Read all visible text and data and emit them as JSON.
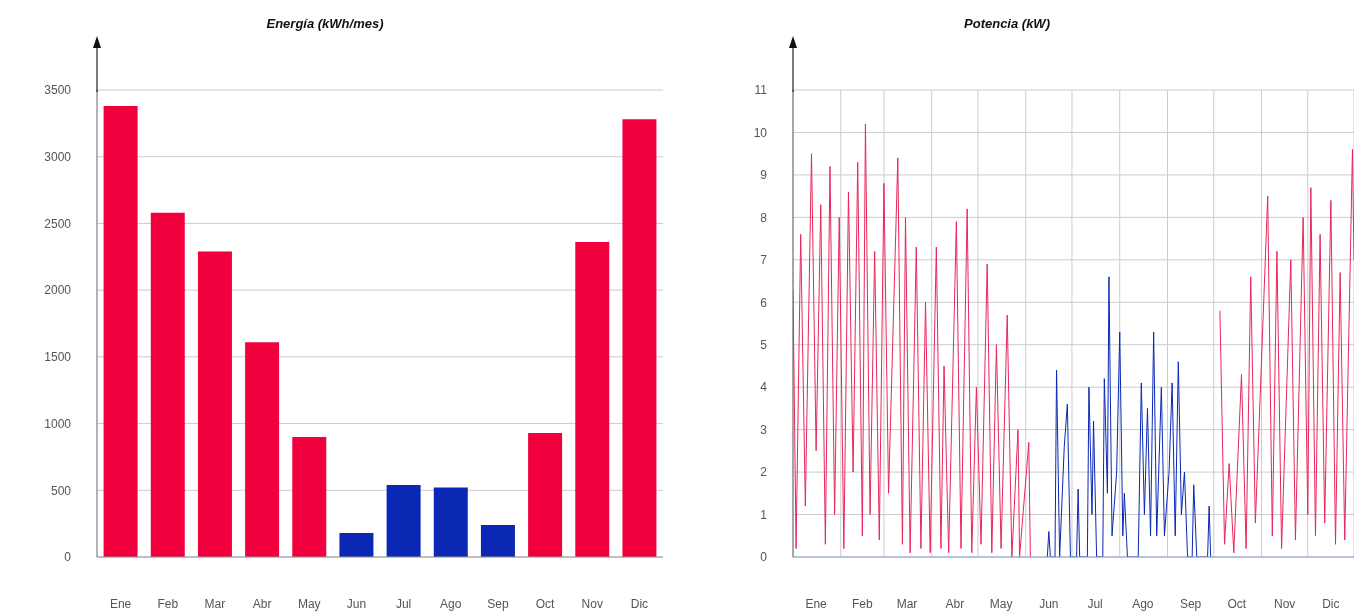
{
  "chart_data": [
    {
      "type": "bar",
      "title": "Energía (kWh/mes)",
      "categories": [
        "Ene",
        "Feb",
        "Mar",
        "Abr",
        "May",
        "Jun",
        "Jul",
        "Ago",
        "Sep",
        "Oct",
        "Nov",
        "Dic"
      ],
      "values": [
        3380,
        2580,
        2290,
        1610,
        900,
        180,
        540,
        520,
        240,
        930,
        2360,
        3280
      ],
      "colors": [
        "#f0003c",
        "#f0003c",
        "#f0003c",
        "#f0003c",
        "#f0003c",
        "#0a28b4",
        "#0a28b4",
        "#0a28b4",
        "#0a28b4",
        "#f0003c",
        "#f0003c",
        "#f0003c"
      ],
      "ylim": [
        0,
        3500
      ],
      "yticks": [
        0,
        500,
        1000,
        1500,
        2000,
        2500,
        3000,
        3500
      ],
      "grid": "y"
    },
    {
      "type": "line",
      "title": "Potencia (kW)",
      "xlim": [
        "--01-01",
        "--12-31"
      ],
      "xticks": [
        {
          "value": "--01-01",
          "label": null
        },
        {
          "value": "--01-16",
          "label": "Ene"
        },
        {
          "value": "--02-01",
          "label": null
        },
        {
          "value": "--02-15",
          "label": "Feb"
        },
        {
          "value": "--03-01",
          "label": null
        },
        {
          "value": "--03-16",
          "label": "Mar"
        },
        {
          "value": "--04-01",
          "label": null
        },
        {
          "value": "--04-16",
          "label": "Abr"
        },
        {
          "value": "--05-01",
          "label": null
        },
        {
          "value": "--05-16",
          "label": "May"
        },
        {
          "value": "--06-01",
          "label": null
        },
        {
          "value": "--06-16",
          "label": "Jun"
        },
        {
          "value": "--07-01",
          "label": null
        },
        {
          "value": "--07-16",
          "label": "Jul"
        },
        {
          "value": "--08-01",
          "label": null
        },
        {
          "value": "--08-16",
          "label": "Ago"
        },
        {
          "value": "--09-01",
          "label": null
        },
        {
          "value": "--09-16",
          "label": "Sep"
        },
        {
          "value": "--10-01",
          "label": null
        },
        {
          "value": "--10-16",
          "label": "Oct"
        },
        {
          "value": "--11-01",
          "label": null
        },
        {
          "value": "--11-16",
          "label": "Nov"
        },
        {
          "value": "--12-01",
          "label": null
        },
        {
          "value": "--12-16",
          "label": "Dic"
        },
        {
          "value": "--12-31",
          "label": null
        }
      ],
      "ylim": [
        0,
        11
      ],
      "yticks": [
        0,
        1,
        2,
        3,
        4,
        5,
        6,
        7,
        8,
        9,
        10,
        11
      ],
      "grid": true,
      "series": [
        {
          "color": "#e8265a",
          "x": [
            "--01-01",
            "--01-03",
            "--01-06",
            "--01-09",
            "--01-13",
            "--01-16",
            "--01-19",
            "--01-22",
            "--01-25",
            "--01-28",
            "--01-31",
            "--02-03",
            "--02-06",
            "--02-09",
            "--02-12",
            "--02-15",
            "--02-17",
            "--02-20",
            "--02-23",
            "--02-26",
            "--03-01",
            "--03-04",
            "--03-10",
            "--03-13",
            "--03-15",
            "--03-18",
            "--03-22",
            "--03-25",
            "--03-28",
            "--03-31",
            "--04-04",
            "--04-07",
            "--04-09",
            "--04-12",
            "--04-17",
            "--04-20",
            "--04-24",
            "--04-27",
            "--04-30",
            "--05-03",
            "--05-07",
            "--05-10",
            "--05-13",
            "--05-16",
            "--05-20",
            "--05-23",
            "--05-27",
            "--05-28",
            "--06-03",
            "--06-04",
            "--07-20",
            "--10-05",
            "--10-08",
            "--10-11",
            "--10-14",
            "--10-19",
            "--10-22",
            "--10-25",
            "--10-28",
            "--11-05",
            "--11-08",
            "--11-11",
            "--11-14",
            "--11-20",
            "--11-23",
            "--11-28",
            "--12-01",
            "--12-03",
            "--12-06",
            "--12-09",
            "--12-12",
            "--12-16",
            "--12-19",
            "--12-22",
            "--12-25",
            "--12-30",
            "--12-31"
          ],
          "values": [
            6.3,
            0.2,
            7.6,
            1.2,
            9.5,
            2.5,
            8.3,
            0.3,
            9.2,
            1.0,
            8.0,
            0.2,
            8.6,
            2.0,
            9.3,
            0.5,
            10.2,
            1.0,
            7.2,
            0.4,
            8.8,
            1.5,
            9.4,
            0.3,
            8.0,
            0.1,
            7.3,
            0.2,
            6.0,
            0.1,
            7.3,
            0.2,
            4.5,
            0.1,
            7.9,
            0.2,
            8.2,
            0.1,
            4.0,
            0.3,
            6.9,
            0.1,
            5.0,
            0.2,
            5.7,
            0,
            3.0,
            0,
            2.7,
            0,
            null,
            5.8,
            0.3,
            2.2,
            0.1,
            4.3,
            0.2,
            6.6,
            0.8,
            8.5,
            0.5,
            7.2,
            0.2,
            7.0,
            0.4,
            8.0,
            1.0,
            8.7,
            0.5,
            7.6,
            0.8,
            8.4,
            0.3,
            6.7,
            0.4,
            9.6,
            7.0
          ]
        },
        {
          "color": "#0a28b4",
          "x": [
            "--06-15",
            "--06-16",
            "--06-17",
            "--06-20",
            "--06-21",
            "--06-23",
            "--06-26",
            "--06-28",
            "--06-30",
            "--07-04",
            "--07-05",
            "--07-06",
            "--07-11",
            "--07-12",
            "--07-14",
            "--07-15",
            "--07-17",
            "--07-21",
            "--07-22",
            "--07-24",
            "--07-25",
            "--07-27",
            "--07-30",
            "--08-01",
            "--08-03",
            "--08-04",
            "--08-06",
            "--08-13",
            "--08-15",
            "--08-17",
            "--08-19",
            "--08-21",
            "--08-23",
            "--08-25",
            "--08-28",
            "--08-30",
            "--09-02",
            "--09-04",
            "--09-06",
            "--09-08",
            "--09-10",
            "--09-12",
            "--09-14",
            "--09-17",
            "--09-18",
            "--09-20",
            "--09-27",
            "--09-28",
            "--09-29"
          ],
          "values": [
            0,
            0.6,
            0,
            0,
            4.4,
            0,
            2.6,
            3.6,
            0,
            0,
            1.6,
            0,
            0,
            4.0,
            1,
            3.2,
            0,
            0,
            4.2,
            1.5,
            6.6,
            0.5,
            2,
            5.3,
            0.5,
            1.5,
            0,
            0,
            4.1,
            1,
            3.5,
            0.5,
            5.3,
            0.5,
            4.0,
            0.5,
            2,
            4.1,
            0.5,
            4.6,
            1,
            2,
            0,
            0,
            1.7,
            0,
            0,
            1.2,
            0
          ]
        }
      ]
    }
  ]
}
